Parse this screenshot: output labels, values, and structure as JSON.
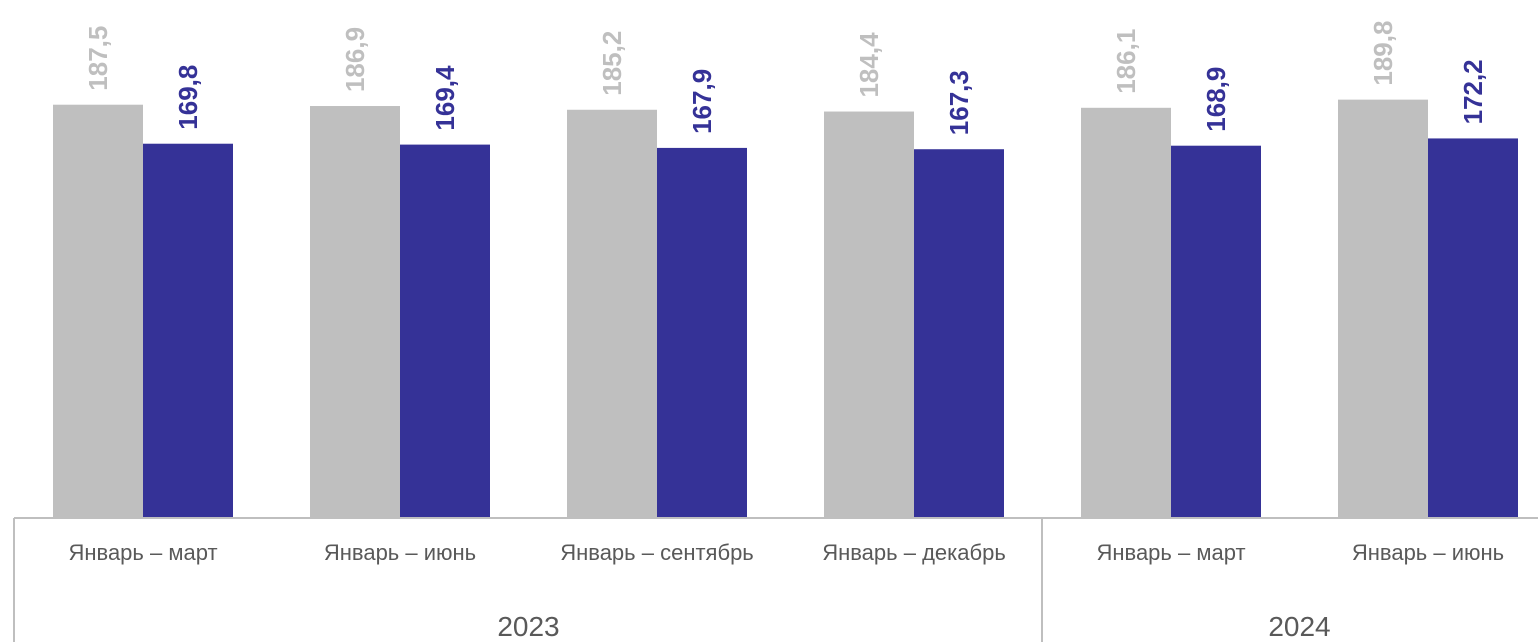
{
  "chart_data": {
    "type": "bar",
    "categories": [
      "Январь – март",
      "Январь – июнь",
      "Январь – сентябрь",
      "Январь – декабрь",
      "Январь – март",
      "Январь – июнь"
    ],
    "groups": [
      {
        "label": "2023",
        "count": 4
      },
      {
        "label": "2024",
        "count": 2
      }
    ],
    "series": [
      {
        "values": [
          187.5,
          186.9,
          185.2,
          184.4,
          186.1,
          189.8
        ],
        "labels": [
          "187,5",
          "186,9",
          "185,2",
          "184,4",
          "186,1",
          "189,8"
        ],
        "color": "#BFBFBF"
      },
      {
        "values": [
          169.8,
          169.4,
          167.9,
          167.3,
          168.9,
          172.2
        ],
        "labels": [
          "169,8",
          "169,4",
          "167,9",
          "167,3",
          "168,9",
          "172,2"
        ],
        "color": "#353297"
      }
    ],
    "ylim": [
      0,
      235
    ],
    "grid": false,
    "legend": "none"
  }
}
